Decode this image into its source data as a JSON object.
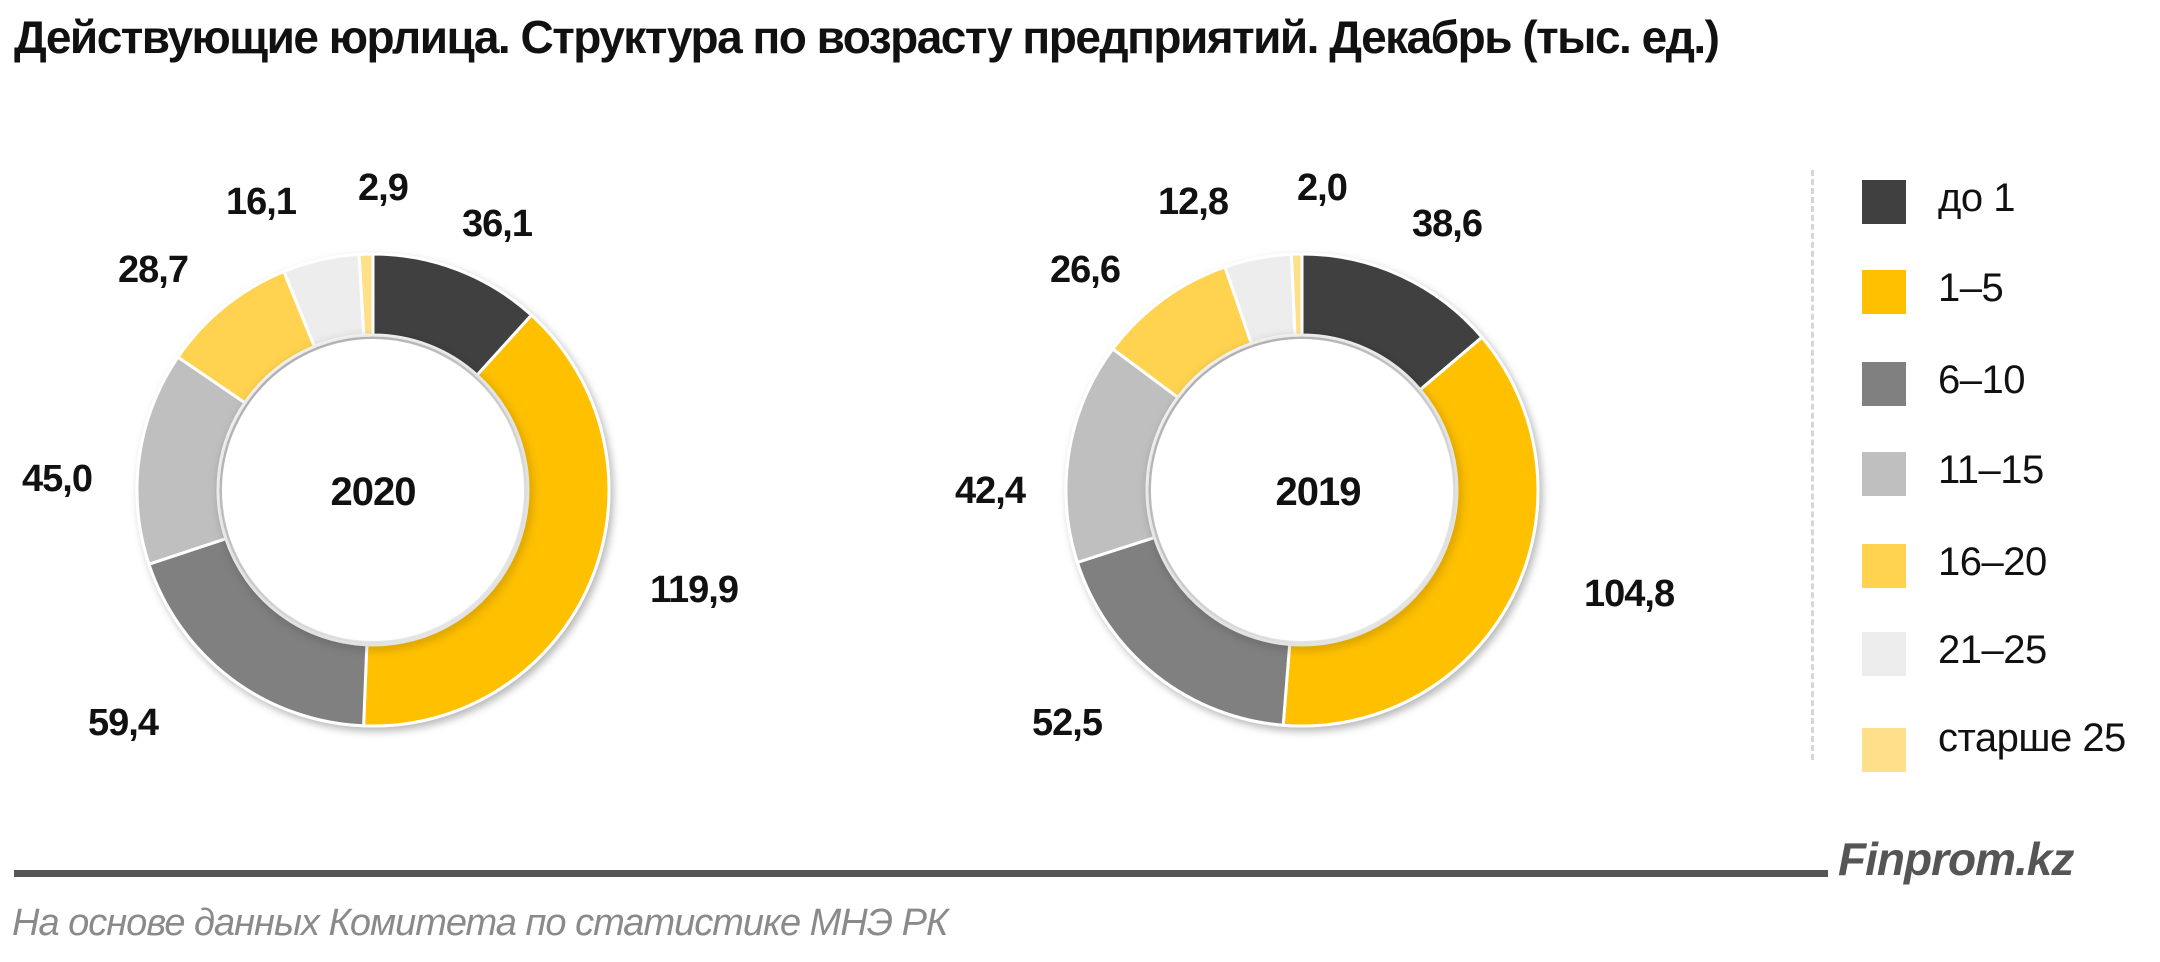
{
  "header": {
    "title": "Действующие юрлица. Структура по возрасту предприятий. Декабрь (тыс. ед.)"
  },
  "legend": {
    "items": [
      {
        "label": "до 1",
        "color": "#404040"
      },
      {
        "label": "1–5",
        "color": "#FFC000"
      },
      {
        "label": "6–10",
        "color": "#808080"
      },
      {
        "label": "11–15",
        "color": "#BFBFBF"
      },
      {
        "label": "16–20",
        "color": "#FFD34F"
      },
      {
        "label": "21–25",
        "color": "#EDEDED"
      },
      {
        "label": "старше 25",
        "color": "#FFE08A"
      }
    ]
  },
  "charts": [
    {
      "center_label": "2020",
      "labels": [
        "36,1",
        "119,9",
        "59,4",
        "45,0",
        "28,7",
        "16,1",
        "2,9"
      ]
    },
    {
      "center_label": "2019",
      "labels": [
        "38,6",
        "104,8",
        "52,5",
        "42,4",
        "26,6",
        "12,8",
        "2,0"
      ]
    }
  ],
  "footer": {
    "brand": "Finprom.kz",
    "source": "На основе данных Комитета по статистике МНЭ РК"
  },
  "chart_data": [
    {
      "type": "pie",
      "variant": "donut",
      "title": "Действующие юрлица. Структура по возрасту предприятий. Декабрь (тыс. ед.)",
      "center_label": "2020",
      "categories": [
        "до 1",
        "1–5",
        "6–10",
        "11–15",
        "16–20",
        "21–25",
        "старше 25"
      ],
      "values": [
        36.1,
        119.9,
        59.4,
        45.0,
        28.7,
        16.1,
        2.9
      ],
      "colors": [
        "#404040",
        "#FFC000",
        "#808080",
        "#BFBFBF",
        "#FFD34F",
        "#EDEDED",
        "#FFE08A"
      ],
      "unit": "тыс. ед.",
      "legend_position": "right"
    },
    {
      "type": "pie",
      "variant": "donut",
      "title": "Действующие юрлица. Структура по возрасту предприятий. Декабрь (тыс. ед.)",
      "center_label": "2019",
      "categories": [
        "до 1",
        "1–5",
        "6–10",
        "11–15",
        "16–20",
        "21–25",
        "старше 25"
      ],
      "values": [
        38.6,
        104.8,
        52.5,
        42.4,
        26.6,
        12.8,
        2.0
      ],
      "colors": [
        "#404040",
        "#FFC000",
        "#808080",
        "#BFBFBF",
        "#FFD34F",
        "#EDEDED",
        "#FFE08A"
      ],
      "unit": "тыс. ед.",
      "legend_position": "right"
    }
  ]
}
